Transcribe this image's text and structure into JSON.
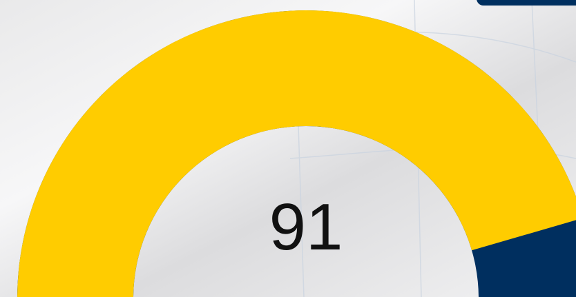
{
  "chart_data": {
    "type": "gauge",
    "value": 91,
    "ylim": [
      0,
      100
    ],
    "color": "#ffcc00",
    "track_color": "#002f5f"
  }
}
